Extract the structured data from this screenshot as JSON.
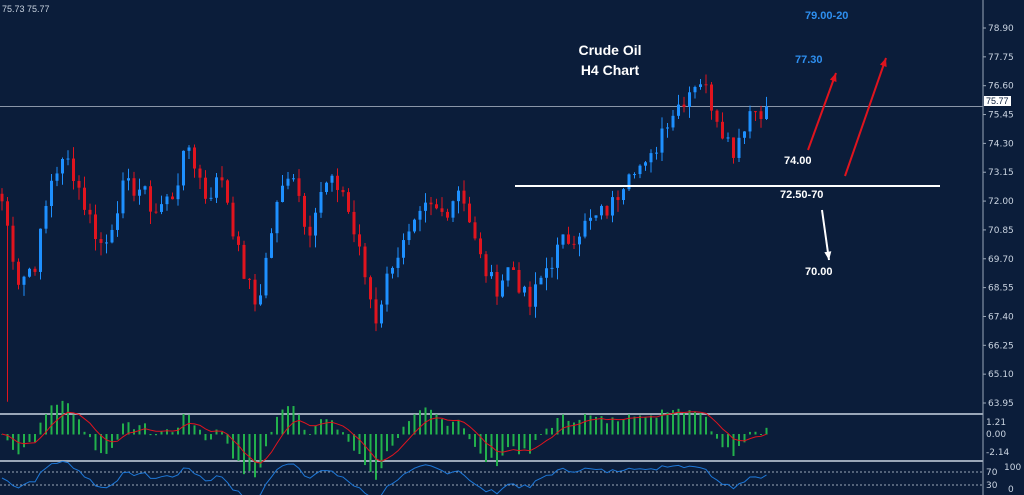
{
  "header": {
    "quote": "75.73 75.77"
  },
  "colors": {
    "bg": "#0b1d3a",
    "bull": "#1e90ff",
    "bear": "#e0141e",
    "macd_hist": "#22b14c",
    "signal": "#e0141e",
    "rsi": "#1e78d8",
    "target_blue": "#2e8fef"
  },
  "chart_data": {
    "type": "candlestick",
    "title": "Crude Oil",
    "subtitle": "H4 Chart",
    "symbol": "Crude Oil",
    "timeframe": "H4",
    "ylim": [
      63.4,
      79.5
    ],
    "y_ticks": [
      "78.90",
      "77.75",
      "76.60",
      "75.45",
      "74.30",
      "73.15",
      "72.00",
      "70.85",
      "69.70",
      "68.55",
      "67.40",
      "66.25",
      "65.10",
      "63.95"
    ],
    "current_price": "75.77",
    "close_path": [
      72.0,
      68.8,
      69.6,
      73.2,
      73.6,
      71.6,
      70.0,
      72.4,
      72.6,
      71.6,
      72.2,
      74.2,
      72.2,
      73.0,
      69.6,
      67.7,
      71.3,
      73.6,
      70.8,
      72.6,
      72.6,
      70.0,
      67.3,
      69.7,
      70.5,
      71.7,
      71.5,
      72.7,
      69.9,
      68.5,
      69.5,
      67.7,
      69.3,
      70.3,
      70.9,
      71.3,
      71.9,
      73.6,
      73.2,
      75.2,
      76.0,
      77.0,
      75.6,
      74.0,
      75.6,
      75.77
    ],
    "levels": [
      {
        "label": "79.00-20",
        "price": 79.1,
        "color": "blue"
      },
      {
        "label": "77.30",
        "price": 77.3,
        "color": "blue"
      },
      {
        "label": "74.00",
        "price": 74.0,
        "color": "white"
      },
      {
        "label": "72.50-70",
        "price": 72.6,
        "color": "white",
        "line": true
      },
      {
        "label": "70.00",
        "price": 70.0,
        "color": "white"
      }
    ],
    "macd": {
      "ticks": [
        "1.21",
        "0.00",
        "-2.14"
      ]
    },
    "rsi": {
      "ticks": [
        "100",
        "70",
        "30",
        "0"
      ]
    }
  }
}
